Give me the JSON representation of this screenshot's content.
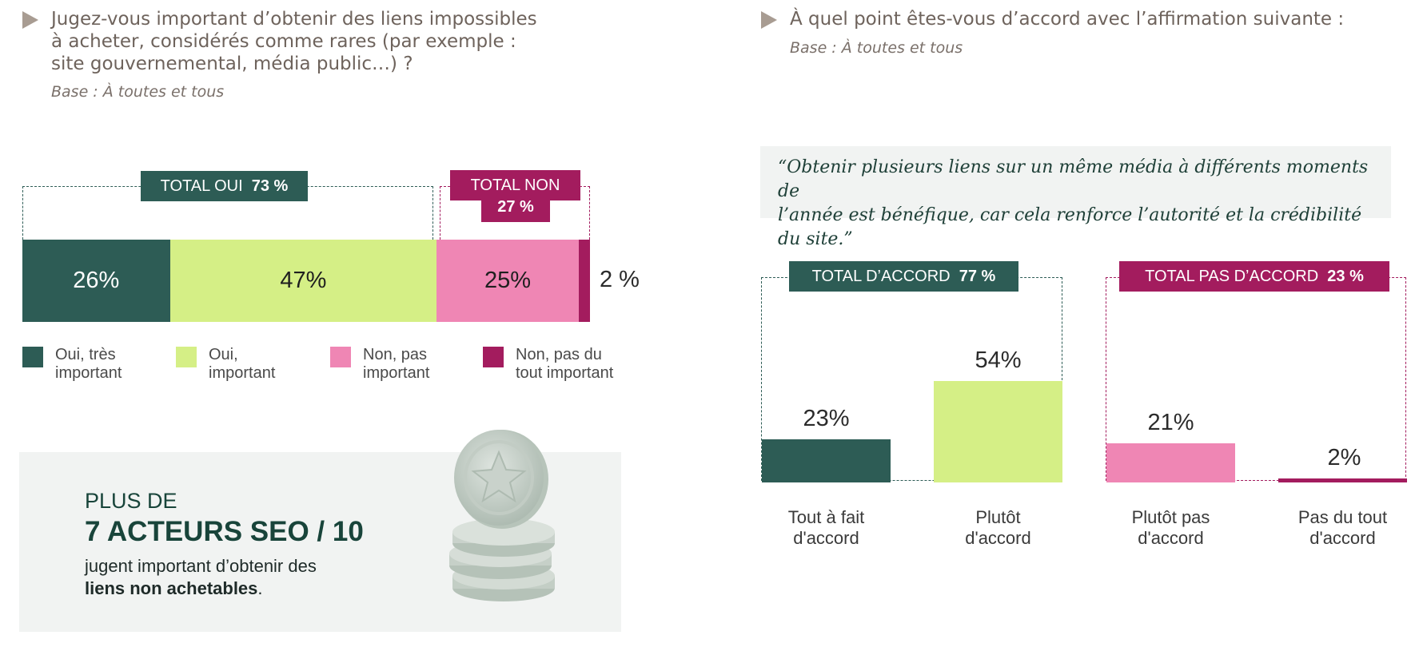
{
  "left": {
    "question_lines": [
      "Jugez-vous important d’obtenir des liens impossibles",
      "à acheter, considérés comme rares (par exemple :",
      "site gouvernemental, média public…) ?"
    ],
    "base": "Base : À toutes et tous",
    "total_oui_label": "TOTAL OUI",
    "total_oui_value": "73 %",
    "total_non_label": "TOTAL NON",
    "total_non_value": "27 %",
    "callout": {
      "line1": "PLUS DE",
      "line2": "7 ACTEURS SEO / 10",
      "line3": "jugent important d’obtenir des",
      "line4_bold": "liens non achetables",
      "line4_end": "."
    }
  },
  "right": {
    "question": "À quel point êtes-vous d’accord avec l’affirmation suivante :",
    "base": "Base : À toutes et tous",
    "quote_line1": "“Obtenir plusieurs liens sur un même média à différents moments de",
    "quote_line2": "l’année est bénéfique, car cela renforce l’autorité et la crédibilité du site.”",
    "total_accord_label": "TOTAL D’ACCORD",
    "total_accord_value": "77 %",
    "total_pas_accord_label": "TOTAL PAS D’ACCORD",
    "total_pas_accord_value": "23 %"
  },
  "colors": {
    "dark_green": "#2d5c55",
    "light_green": "#d5ef86",
    "pink": "#ef86b4",
    "magenta": "#a31c5e"
  },
  "chart_data": [
    {
      "type": "bar",
      "orientation": "horizontal-stacked",
      "categories": [
        "Oui, très important",
        "Oui, important",
        "Non, pas important",
        "Non, pas du tout important"
      ],
      "values": [
        26,
        47,
        25,
        2
      ],
      "labels": [
        "26%",
        "47%",
        "25%",
        "2 %"
      ],
      "legend": [
        [
          "Oui, très",
          "important"
        ],
        [
          "Oui,",
          "important"
        ],
        [
          "Non, pas",
          "important"
        ],
        [
          "Non, pas du",
          "tout important"
        ]
      ]
    },
    {
      "type": "bar",
      "categories": [
        "Tout à fait d'accord",
        "Plutôt d'accord",
        "Plutôt pas d'accord",
        "Pas du tout d'accord"
      ],
      "category_lines": [
        [
          "Tout à fait",
          "d'accord"
        ],
        [
          "Plutôt",
          "d'accord"
        ],
        [
          "Plutôt pas",
          "d'accord"
        ],
        [
          "Pas du tout",
          "d'accord"
        ]
      ],
      "values": [
        23,
        54,
        21,
        2
      ],
      "labels": [
        "23%",
        "54%",
        "21%",
        "2%"
      ]
    }
  ]
}
